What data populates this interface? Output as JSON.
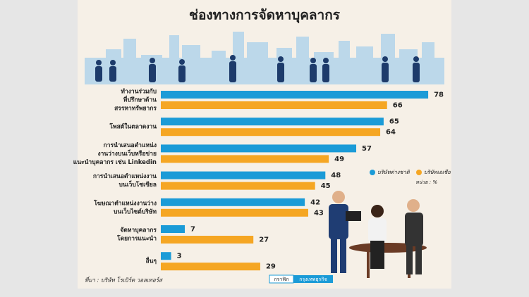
{
  "chart_data": {
    "type": "bar",
    "title": "ช่องทางการจัดหาบุคลากร",
    "orientation": "horizontal",
    "categories": [
      [
        "ทำงานร่วมกับ",
        "ที่ปรึกษาด้าน",
        "สรรหาทรัพยากร"
      ],
      [
        "โพสต์ในตลาดงาน"
      ],
      [
        "การนำเสนอตำแหน่ง",
        "งานว่างบนเว็บหรือข่าย",
        "แนะนำบุคลากร เช่น Linkedin"
      ],
      [
        "การนำเสนอตำแหน่งงาน",
        "บนเว็บโซเชียล"
      ],
      [
        "โฆษณาตำแหน่งงานว่าง",
        "บนเว็บไซต์บริษัท"
      ],
      [
        "จัดหาบุคลากร",
        "โดยการแนะนำ"
      ],
      [
        "อื่นๆ"
      ]
    ],
    "series": [
      {
        "name": "บริษัทต่างชาติ",
        "color": "#1b9bd7",
        "values": [
          78,
          65,
          57,
          48,
          42,
          7,
          3
        ]
      },
      {
        "name": "บริษัทเอเชีย",
        "color": "#f5a623",
        "values": [
          66,
          64,
          49,
          45,
          43,
          27,
          29
        ]
      }
    ],
    "unit_note": "หน่วย : %",
    "source": "ที่มา : บริษัท โรเบิร์ต วอลเทอร์ส",
    "credit": [
      "กราฟิก",
      "กรุงเทพธุรกิจ"
    ]
  }
}
